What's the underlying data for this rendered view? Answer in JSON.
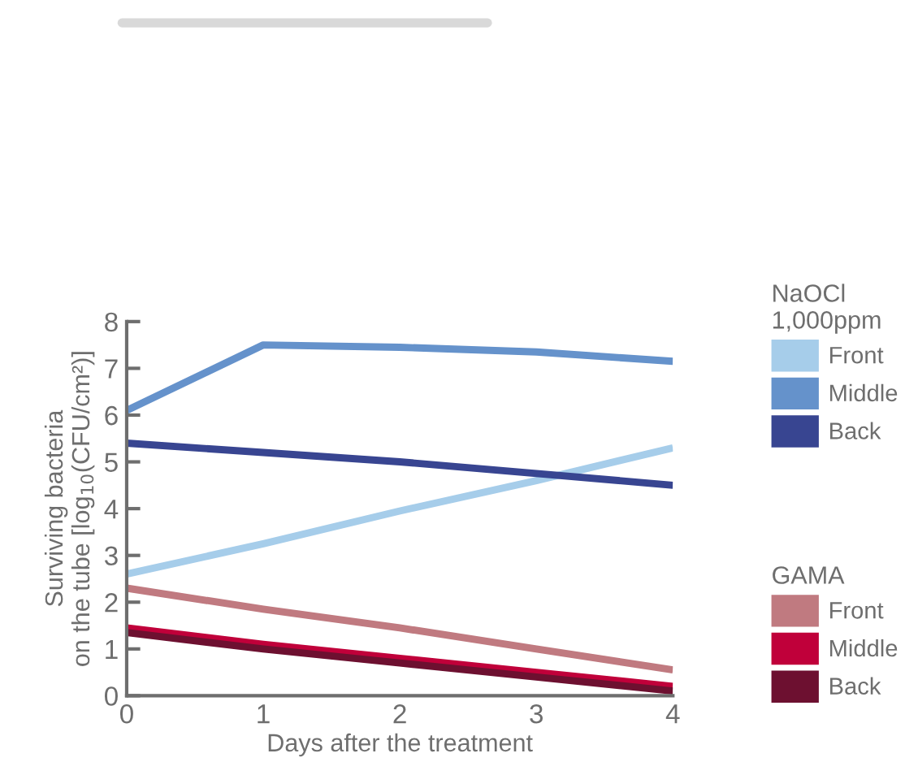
{
  "chart_data": {
    "type": "line",
    "xlabel": "Days after the treatment",
    "ylabel": "Surviving bacteria\non the tube [log$_{10}$(CFU/cm²)]",
    "x": [
      0,
      1,
      2,
      3,
      4
    ],
    "xlim": [
      0,
      4
    ],
    "xticks": [
      0,
      1,
      2,
      3,
      4
    ],
    "ylim": [
      0,
      8
    ],
    "yticks": [
      0,
      1,
      2,
      3,
      4,
      5,
      6,
      7,
      8
    ],
    "grid": false,
    "legend": "right",
    "marker": "none",
    "line_style": "solid",
    "annotations": [
      "NaOCl\n1,000ppm",
      "GAMA"
    ],
    "series": [
      {
        "name": "Front",
        "color": "#a6cdea",
        "values": [
          2.6,
          3.25,
          3.95,
          4.6,
          5.3
        ]
      },
      {
        "name": "Middle",
        "color": "#6592cb",
        "values": [
          6.1,
          7.5,
          7.45,
          7.35,
          7.15
        ]
      },
      {
        "name": "Back",
        "color": "#384591",
        "values": [
          5.4,
          5.2,
          5.0,
          4.75,
          4.5
        ]
      },
      {
        "name": "Front",
        "color": "#c07a80",
        "values": [
          2.3,
          1.85,
          1.45,
          1.0,
          0.55
        ]
      },
      {
        "name": "Middle",
        "color": "#c0003a",
        "values": [
          1.45,
          1.1,
          0.8,
          0.5,
          0.2
        ]
      },
      {
        "name": "Back",
        "color": "#6d1030",
        "values": [
          1.35,
          1.0,
          0.7,
          0.4,
          0.1
        ]
      }
    ]
  }
}
